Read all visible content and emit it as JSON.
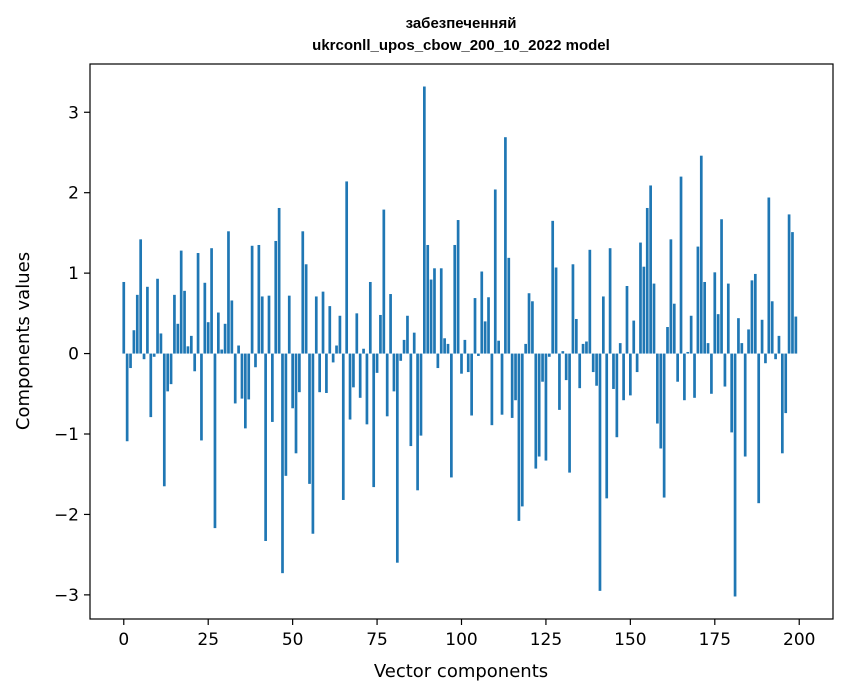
{
  "chart_data": {
    "type": "bar",
    "title_line1": "забезпеченняй",
    "title_line2": "ukrconll_upos_cbow_200_10_2022 model",
    "xlabel": "Vector components",
    "ylabel": "Components values",
    "xlim": [
      -10,
      210
    ],
    "ylim": [
      -3.3,
      3.6
    ],
    "xticks": [
      0,
      25,
      50,
      75,
      100,
      125,
      150,
      175,
      200
    ],
    "yticks": [
      -3,
      -2,
      -1,
      0,
      1,
      2,
      3
    ],
    "ytick_labels": [
      "−3",
      "−2",
      "−1",
      "0",
      "1",
      "2",
      "3"
    ],
    "grid": false,
    "bar_color": "#1f77b4",
    "values": [
      0.89,
      -1.09,
      -0.18,
      0.29,
      0.73,
      1.42,
      -0.07,
      0.83,
      -0.79,
      -0.04,
      0.93,
      0.25,
      -1.65,
      -0.47,
      -0.38,
      0.73,
      0.37,
      1.28,
      0.78,
      0.09,
      0.22,
      -0.22,
      1.25,
      -1.08,
      0.88,
      0.39,
      1.31,
      -2.17,
      0.51,
      0.05,
      0.37,
      1.52,
      0.66,
      -0.62,
      0.1,
      -0.56,
      -0.93,
      -0.57,
      1.34,
      -0.17,
      1.35,
      0.71,
      -2.33,
      0.72,
      -0.85,
      1.4,
      1.81,
      -2.73,
      -1.52,
      0.72,
      -0.68,
      -1.24,
      -0.48,
      1.52,
      1.11,
      -1.62,
      -2.24,
      0.71,
      -0.48,
      0.77,
      -0.49,
      0.59,
      -0.11,
      0.1,
      0.47,
      -1.82,
      2.14,
      -0.82,
      -0.42,
      0.5,
      -0.55,
      0.06,
      -0.88,
      0.89,
      -1.66,
      -0.24,
      0.48,
      1.79,
      -0.78,
      0.74,
      -0.47,
      -2.6,
      -0.09,
      0.17,
      0.47,
      -1.15,
      0.26,
      -1.7,
      -1.02,
      3.32,
      1.35,
      0.92,
      1.06,
      -0.18,
      1.06,
      0.19,
      0.12,
      -1.54,
      1.35,
      1.66,
      -0.25,
      0.17,
      -0.23,
      -0.77,
      0.69,
      -0.03,
      1.02,
      0.4,
      0.7,
      -0.89,
      2.04,
      0.16,
      -0.76,
      2.69,
      1.19,
      -0.8,
      -0.58,
      -2.08,
      -1.9,
      0.12,
      0.75,
      0.65,
      -1.43,
      -1.28,
      -0.35,
      -1.33,
      -0.04,
      1.65,
      1.07,
      -0.7,
      0.03,
      -0.33,
      -1.48,
      1.11,
      0.43,
      -0.43,
      0.12,
      0.15,
      1.29,
      -0.23,
      -0.4,
      -2.95,
      0.71,
      -1.8,
      1.31,
      -0.44,
      -1.04,
      0.13,
      -0.58,
      0.84,
      -0.52,
      0.41,
      -0.23,
      1.38,
      1.08,
      1.81,
      2.09,
      0.87,
      -0.87,
      -1.18,
      -1.79,
      0.33,
      1.42,
      0.62,
      -0.35,
      2.2,
      -0.58,
      0.02,
      0.47,
      -0.55,
      1.33,
      2.46,
      0.89,
      0.13,
      -0.5,
      1.01,
      0.49,
      1.67,
      -0.41,
      0.87,
      -0.98,
      -3.02,
      0.44,
      0.13,
      -1.28,
      0.3,
      0.91,
      0.99,
      -1.86,
      0.42,
      -0.12,
      1.94,
      0.65,
      -0.07,
      0.22,
      -1.24,
      -0.74,
      1.73,
      1.51,
      0.46
    ]
  }
}
